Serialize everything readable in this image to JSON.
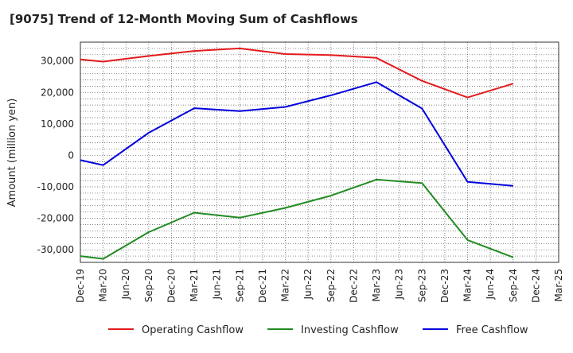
{
  "chart_data": {
    "type": "line",
    "title": "[9075]  Trend of 12-Month Moving Sum of Cashflows",
    "xlabel": "",
    "ylabel": "Amount (million yen)",
    "categories": [
      "Dec-19",
      "Mar-20",
      "Jun-20",
      "Sep-20",
      "Dec-20",
      "Mar-21",
      "Jun-21",
      "Sep-21",
      "Dec-21",
      "Mar-22",
      "Jun-22",
      "Sep-22",
      "Dec-22",
      "Mar-23",
      "Jun-23",
      "Sep-23",
      "Dec-23",
      "Mar-24",
      "Jun-24",
      "Sep-24",
      "Dec-24",
      "Mar-25"
    ],
    "ylim": [
      -34000,
      36000
    ],
    "yticks": [
      30000,
      20000,
      10000,
      0,
      -10000,
      -20000,
      -30000
    ],
    "ytick_labels": [
      "30,000",
      "20,000",
      "10,000",
      "0",
      "-10,000",
      "-20,000",
      "-30,000"
    ],
    "grid": true,
    "legend_position": "bottom",
    "series": [
      {
        "name": "Operating Cashflow",
        "color": "#e31a1c",
        "values": [
          30500,
          29800,
          null,
          31600,
          null,
          33200,
          null,
          34000,
          null,
          32200,
          null,
          31900,
          null,
          31000,
          null,
          23700,
          null,
          18400,
          null,
          22800,
          null,
          null
        ]
      },
      {
        "name": "Investing Cashflow",
        "color": "#228b22",
        "values": [
          -32000,
          -32900,
          null,
          -24400,
          null,
          -18200,
          null,
          -19800,
          null,
          -16700,
          null,
          -12800,
          null,
          -7700,
          null,
          -8800,
          null,
          -26900,
          null,
          -32400,
          null,
          null
        ]
      },
      {
        "name": "Free Cashflow",
        "color": "#0000dd",
        "values": [
          -1500,
          -3100,
          null,
          7200,
          null,
          15000,
          null,
          14100,
          null,
          15400,
          null,
          19100,
          null,
          23300,
          null,
          14900,
          null,
          -8400,
          null,
          -9700,
          null,
          null
        ]
      }
    ]
  }
}
